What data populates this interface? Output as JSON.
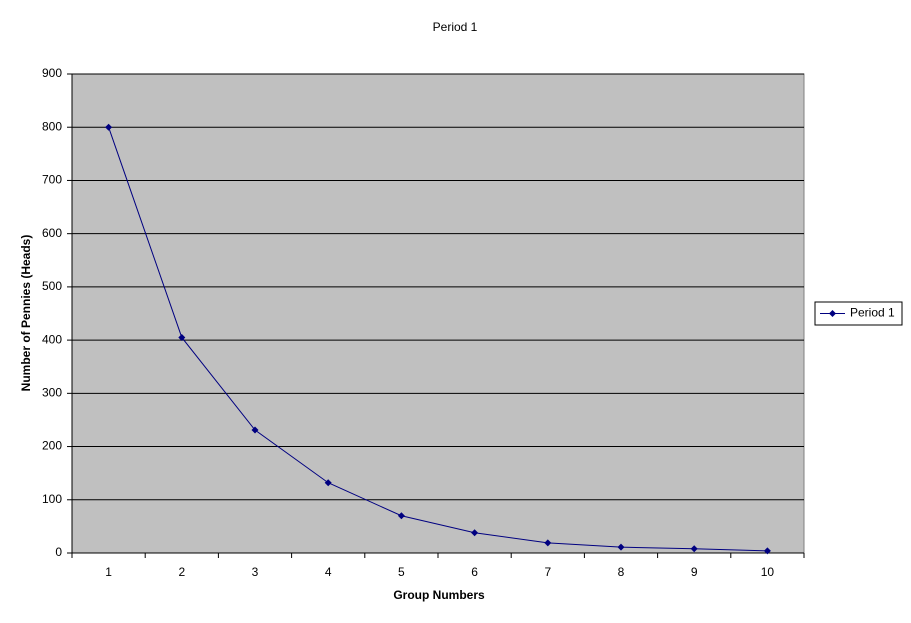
{
  "chart_data": {
    "type": "line",
    "title": "Period 1",
    "x_label": "Group Numbers",
    "y_label": "Number of Pennies (Heads)",
    "categories": [
      "1",
      "2",
      "3",
      "4",
      "5",
      "6",
      "7",
      "8",
      "9",
      "10"
    ],
    "series": [
      {
        "name": "Period 1",
        "color": "#000080",
        "values": [
          800,
          405,
          231,
          132,
          70,
          38,
          19,
          11,
          8,
          4
        ]
      }
    ],
    "ylim": [
      0,
      900
    ],
    "yticks": [
      0,
      100,
      200,
      300,
      400,
      500,
      600,
      700,
      800,
      900
    ],
    "grid": true,
    "legend": "right",
    "plot_background": "#c0c0c0"
  }
}
